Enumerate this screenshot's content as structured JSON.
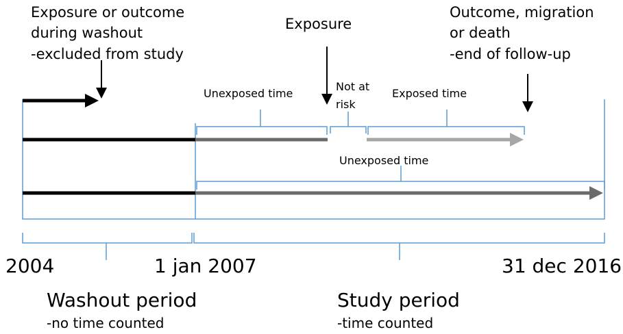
{
  "annotations": {
    "washout_event": [
      "Exposure or outcome",
      "during washout",
      "-excluded from study"
    ],
    "exposure": "Exposure",
    "end_event": [
      "Outcome, migration",
      "or death",
      "-end of follow-up"
    ]
  },
  "segments": {
    "unexposed_1": "Unexposed time",
    "not_at_risk": [
      "Not at",
      "risk"
    ],
    "exposed": "Exposed time",
    "unexposed_2": "Unexposed time"
  },
  "timeline": {
    "start": "2004",
    "study_start": "1 jan 2007",
    "end": "31 dec 2016"
  },
  "periods": {
    "washout": {
      "title": "Washout period",
      "note": "-no time counted"
    },
    "study": {
      "title": "Study period",
      "note": "-time counted"
    }
  }
}
